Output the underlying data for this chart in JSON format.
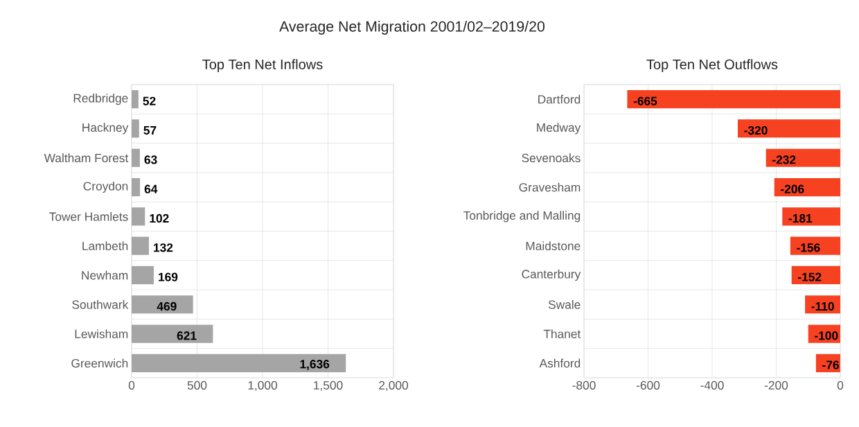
{
  "chart_data": [
    {
      "type": "bar",
      "orientation": "horizontal",
      "title": "Average Net Migration 2001/02–2019/20",
      "subtitle": "Top Ten Net Inflows",
      "categories": [
        "Redbridge",
        "Hackney",
        "Waltham Forest",
        "Croydon",
        "Tower Hamlets",
        "Lambeth",
        "Newham",
        "Southwark",
        "Lewisham",
        "Greenwich"
      ],
      "values": [
        52,
        57,
        63,
        64,
        102,
        132,
        169,
        469,
        621,
        1636
      ],
      "value_labels": [
        "52",
        "57",
        "63",
        "64",
        "102",
        "132",
        "169",
        "469",
        "621",
        "1,636"
      ],
      "color": "#a5a5a5",
      "xlim": [
        0,
        2000
      ],
      "xticks": [
        0,
        500,
        {
          "value": 1000,
          "label": "1,000"
        },
        {
          "value": 1500,
          "label": "1,500"
        },
        {
          "value": 2000,
          "label": "2,000"
        }
      ],
      "grid": true
    },
    {
      "type": "bar",
      "orientation": "horizontal",
      "subtitle": "Top Ten Net Outflows",
      "categories": [
        "Dartford",
        "Medway",
        "Sevenoaks",
        "Gravesham",
        "Tonbridge and Malling",
        "Maidstone",
        "Canterbury",
        "Swale",
        "Thanet",
        "Ashford"
      ],
      "values": [
        -665,
        -320,
        -232,
        -206,
        -181,
        -156,
        -152,
        -110,
        -100,
        -76
      ],
      "data_labels": true,
      "color": "#f74222",
      "xlim": [
        -800,
        0
      ],
      "xticks": [
        -800,
        -600,
        -400,
        -200,
        0
      ],
      "grid": true
    }
  ]
}
